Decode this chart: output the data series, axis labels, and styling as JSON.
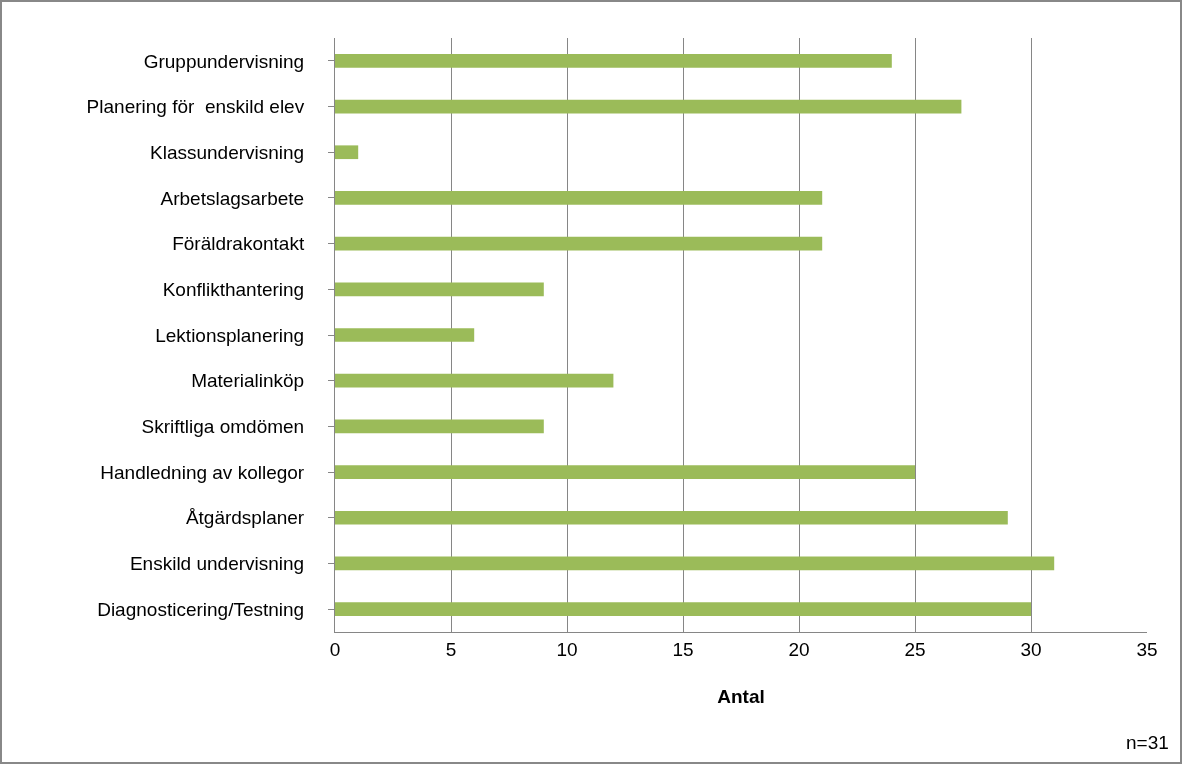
{
  "chart_data": {
    "type": "bar",
    "orientation": "horizontal",
    "xlabel": "Antal",
    "categories": [
      "Gruppundervisning",
      "Planering för  enskild elev",
      "Klassundervisning",
      "Arbetslagsarbete",
      "Föräldrakontakt",
      "Konflikthantering",
      "Lektionsplanering",
      "Materialinköp",
      "Skriftliga omdömen",
      "Handledning av kollegor",
      "Åtgärdsplaner",
      "Enskild undervisning",
      "Diagnosticering/Testning"
    ],
    "values": [
      24,
      27,
      1,
      21,
      21,
      9,
      6,
      12,
      9,
      25,
      29,
      31,
      30
    ],
    "color": "#9bbb59",
    "xlim": [
      0,
      35
    ],
    "xticks": [
      0,
      5,
      10,
      15,
      20,
      25,
      30,
      35
    ],
    "grid": "x",
    "annotations": [
      "n=31"
    ]
  }
}
